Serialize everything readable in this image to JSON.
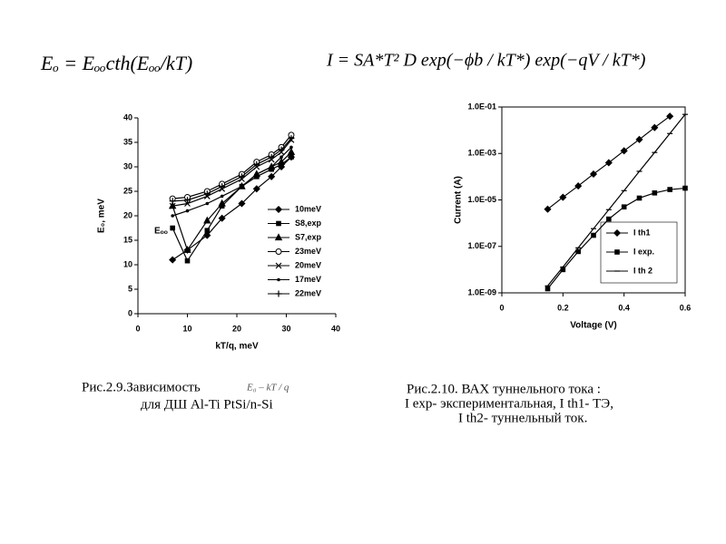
{
  "formulas": {
    "left": "Eₒ = Eₒₒcth(Eₒₒ/kT)",
    "right": "I = SA*T² D exp(−ϕb / kT*) exp(−qV / kT*)"
  },
  "captions": {
    "left": [
      "Рис.2.9.Зависимость",
      "E₀ – kT / q",
      "для ДШ Al-Ti PtSi/n-Si"
    ],
    "right": [
      "Рис.2.10.  ВАХ туннельного тока :",
      "I exp-  экспериментальная, I th1-  ТЭ,",
      "I th2-  туннельный ток."
    ]
  },
  "chart_data": [
    {
      "type": "line",
      "xlabel": "kT/q, meV",
      "ylabel": "E₀, meV",
      "annotation": "Eₒₒ",
      "x": [
        7,
        10,
        14,
        17,
        21,
        24,
        27,
        29,
        31
      ],
      "xlim": [
        0,
        40
      ],
      "xticks": [
        0,
        10,
        20,
        30,
        40
      ],
      "ylim": [
        0,
        40
      ],
      "yticks": [
        0,
        5,
        10,
        15,
        20,
        25,
        30,
        35,
        40
      ],
      "series": [
        {
          "name": "10meV",
          "color": "#000000",
          "marker": "diamond",
          "values": [
            11,
            13,
            16,
            19.5,
            22.5,
            25.5,
            28,
            30,
            32
          ]
        },
        {
          "name": "S8,exp",
          "color": "#000000",
          "marker": "square",
          "values": [
            17.5,
            10.8,
            17,
            22,
            26,
            28,
            29.5,
            30.5,
            32
          ]
        },
        {
          "name": "S7,exp",
          "color": "#000000",
          "marker": "triangle",
          "values": [
            22,
            13,
            19,
            22.5,
            26,
            28.5,
            30,
            31,
            33
          ]
        },
        {
          "name": "23meV",
          "color": "#000000",
          "marker": "circle",
          "values": [
            23.5,
            23.8,
            25,
            26.5,
            28.5,
            31,
            32.5,
            34,
            36.5
          ]
        },
        {
          "name": "20meV",
          "color": "#000000",
          "marker": "x",
          "values": [
            22,
            22.5,
            24,
            25.5,
            27.5,
            30,
            31.5,
            33,
            35.5
          ]
        },
        {
          "name": "17meV",
          "color": "#000000",
          "marker": "dot",
          "values": [
            20,
            21,
            22.5,
            24,
            26,
            28.5,
            30,
            32,
            34
          ]
        },
        {
          "name": "22meV",
          "color": "#000000",
          "marker": "plus",
          "values": [
            23,
            23.2,
            24.5,
            26,
            28,
            30.5,
            32,
            33.5,
            35.8
          ]
        }
      ]
    },
    {
      "type": "line",
      "xlabel": "Voltage (V)",
      "ylabel": "Current (A)",
      "log_y": true,
      "x": [
        0.15,
        0.2,
        0.25,
        0.3,
        0.35,
        0.4,
        0.45,
        0.5,
        0.55,
        0.6
      ],
      "xlim": [
        0,
        0.6
      ],
      "xticks": [
        0,
        0.2,
        0.4,
        0.6
      ],
      "ylim": [
        1e-09,
        0.1
      ],
      "yticks": [
        {
          "value": 0.1,
          "label": "1.0E-01"
        },
        {
          "value": 0.001,
          "label": "1.0E-03"
        },
        {
          "value": 1e-05,
          "label": "1.0E-05"
        },
        {
          "value": 1e-07,
          "label": "1.0E-07"
        },
        {
          "value": 1e-09,
          "label": "1.0E-09"
        }
      ],
      "series": [
        {
          "name": "I th1",
          "color": "#000000",
          "marker": "diamond",
          "values": [
            4e-06,
            1.3e-05,
            4e-05,
            0.00013,
            0.0004,
            0.0013,
            0.004,
            0.013,
            0.04,
            null
          ]
        },
        {
          "name": "I exp.",
          "color": "#000000",
          "marker": "square",
          "values": [
            1.5e-09,
            1e-08,
            6e-08,
            3e-07,
            1.5e-06,
            5e-06,
            1.2e-05,
            2e-05,
            2.8e-05,
            3.2e-05
          ]
        },
        {
          "name": "I th 2",
          "color": "#000000",
          "marker": "dash",
          "values": [
            2e-09,
            1.3e-08,
            8.7e-08,
            5.8e-07,
            3.8e-06,
            2.5e-05,
            0.00017,
            0.0011,
            0.0072,
            0.048
          ]
        }
      ]
    }
  ]
}
